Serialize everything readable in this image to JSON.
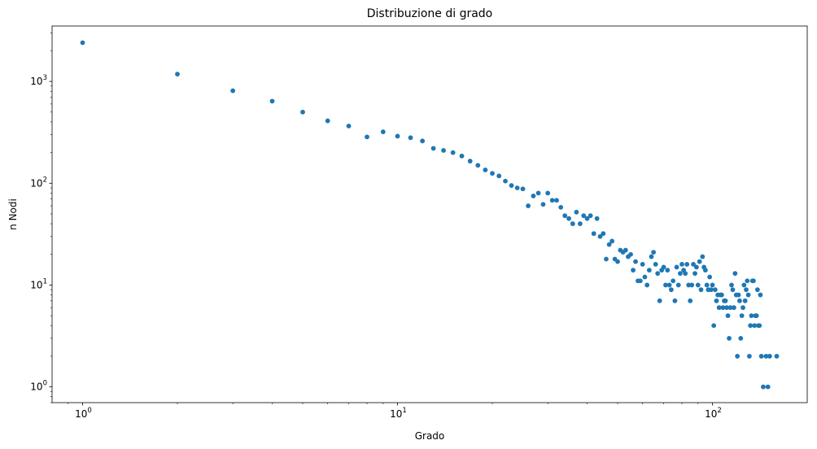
{
  "chart_data": {
    "type": "scatter",
    "title": "Distribuzione di grado",
    "xlabel": "Grado",
    "ylabel": "n Nodi",
    "xscale": "log",
    "yscale": "log",
    "xlim": [
      0.8,
      200
    ],
    "ylim": [
      0.7,
      3500
    ],
    "grid": false,
    "legend": "none",
    "marker_color": "#1f77b4",
    "x_ticks": [
      {
        "value": 1,
        "base": "10",
        "exp": "0"
      },
      {
        "value": 10,
        "base": "10",
        "exp": "1"
      },
      {
        "value": 100,
        "base": "10",
        "exp": "2"
      }
    ],
    "y_ticks": [
      {
        "value": 1,
        "base": "10",
        "exp": "0"
      },
      {
        "value": 10,
        "base": "10",
        "exp": "1"
      },
      {
        "value": 100,
        "base": "10",
        "exp": "2"
      },
      {
        "value": 1000,
        "base": "10",
        "exp": "3"
      }
    ],
    "series": [
      {
        "points": [
          [
            1,
            2400
          ],
          [
            2,
            1180
          ],
          [
            3,
            810
          ],
          [
            4,
            640
          ],
          [
            5,
            500
          ],
          [
            6,
            410
          ],
          [
            7,
            365
          ],
          [
            8,
            285
          ],
          [
            9,
            320
          ],
          [
            10,
            290
          ],
          [
            11,
            280
          ],
          [
            12,
            260
          ],
          [
            13,
            220
          ],
          [
            14,
            210
          ],
          [
            15,
            200
          ],
          [
            16,
            185
          ],
          [
            17,
            165
          ],
          [
            18,
            150
          ],
          [
            19,
            135
          ],
          [
            20,
            125
          ],
          [
            21,
            118
          ],
          [
            22,
            105
          ],
          [
            23,
            95
          ],
          [
            24,
            90
          ],
          [
            25,
            88
          ],
          [
            26,
            60
          ],
          [
            27,
            75
          ],
          [
            28,
            80
          ],
          [
            29,
            62
          ],
          [
            30,
            80
          ],
          [
            31,
            68
          ],
          [
            32,
            68
          ],
          [
            33,
            58
          ],
          [
            34,
            48
          ],
          [
            35,
            45
          ],
          [
            36,
            40
          ],
          [
            37,
            52
          ],
          [
            38,
            40
          ],
          [
            39,
            48
          ],
          [
            40,
            45
          ],
          [
            41,
            48
          ],
          [
            42,
            32
          ],
          [
            43,
            45
          ],
          [
            44,
            30
          ],
          [
            45,
            32
          ],
          [
            46,
            18
          ],
          [
            47,
            25
          ],
          [
            48,
            27
          ],
          [
            49,
            18
          ],
          [
            50,
            17
          ],
          [
            51,
            22
          ],
          [
            52,
            21
          ],
          [
            53,
            22
          ],
          [
            54,
            19
          ],
          [
            55,
            20
          ],
          [
            56,
            14
          ],
          [
            57,
            17
          ],
          [
            58,
            11
          ],
          [
            59,
            11
          ],
          [
            60,
            16
          ],
          [
            61,
            12
          ],
          [
            62,
            10
          ],
          [
            63,
            14
          ],
          [
            64,
            19
          ],
          [
            65,
            21
          ],
          [
            66,
            16
          ],
          [
            67,
            13
          ],
          [
            68,
            7
          ],
          [
            69,
            14
          ],
          [
            70,
            15
          ],
          [
            71,
            10
          ],
          [
            72,
            14
          ],
          [
            73,
            10
          ],
          [
            74,
            9
          ],
          [
            75,
            11
          ],
          [
            76,
            7
          ],
          [
            77,
            15
          ],
          [
            78,
            10
          ],
          [
            79,
            13
          ],
          [
            80,
            16
          ],
          [
            81,
            14
          ],
          [
            82,
            13
          ],
          [
            83,
            16
          ],
          [
            84,
            10
          ],
          [
            85,
            7
          ],
          [
            86,
            10
          ],
          [
            87,
            16
          ],
          [
            88,
            13
          ],
          [
            89,
            15
          ],
          [
            90,
            10
          ],
          [
            91,
            17
          ],
          [
            92,
            9
          ],
          [
            93,
            19
          ],
          [
            94,
            15
          ],
          [
            95,
            14
          ],
          [
            96,
            10
          ],
          [
            97,
            9
          ],
          [
            98,
            12
          ],
          [
            99,
            9
          ],
          [
            100,
            10
          ],
          [
            101,
            4
          ],
          [
            102,
            9
          ],
          [
            103,
            7
          ],
          [
            104,
            8
          ],
          [
            105,
            6
          ],
          [
            106,
            8
          ],
          [
            107,
            8
          ],
          [
            108,
            6
          ],
          [
            109,
            7
          ],
          [
            110,
            7
          ],
          [
            111,
            6
          ],
          [
            112,
            5
          ],
          [
            113,
            3
          ],
          [
            114,
            6
          ],
          [
            115,
            10
          ],
          [
            116,
            9
          ],
          [
            117,
            6
          ],
          [
            118,
            13
          ],
          [
            119,
            8
          ],
          [
            120,
            2
          ],
          [
            121,
            8
          ],
          [
            122,
            7
          ],
          [
            123,
            3
          ],
          [
            124,
            5
          ],
          [
            125,
            6
          ],
          [
            126,
            10
          ],
          [
            127,
            7
          ],
          [
            128,
            9
          ],
          [
            129,
            11
          ],
          [
            130,
            8
          ],
          [
            131,
            2
          ],
          [
            132,
            4
          ],
          [
            133,
            5
          ],
          [
            134,
            11
          ],
          [
            135,
            11
          ],
          [
            136,
            4
          ],
          [
            137,
            5
          ],
          [
            138,
            5
          ],
          [
            139,
            9
          ],
          [
            140,
            4
          ],
          [
            141,
            4
          ],
          [
            142,
            8
          ],
          [
            143,
            2
          ],
          [
            145,
            1
          ],
          [
            148,
            2
          ],
          [
            150,
            1
          ],
          [
            152,
            2
          ],
          [
            160,
            2
          ]
        ]
      }
    ]
  }
}
